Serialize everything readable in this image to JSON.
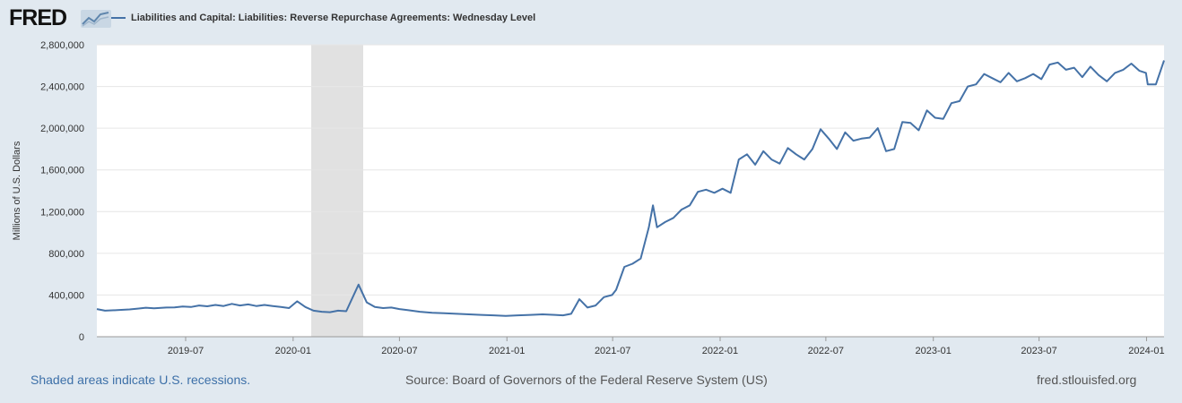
{
  "logo": {
    "text": "FRED",
    "icon": "line-chart-icon"
  },
  "legend": {
    "label": "Liabilities and Capital: Liabilities: Reverse Repurchase Agreements: Wednesday Level",
    "color": "#4572a7"
  },
  "footer": {
    "recession_note": "Shaded areas indicate U.S. recessions.",
    "source": "Source: Board of Governors of the Federal Reserve System (US)",
    "site": "fred.stlouisfed.org"
  },
  "chart_data": {
    "type": "line",
    "title": "Liabilities and Capital: Liabilities: Reverse Repurchase Agreements: Wednesday Level",
    "xlabel": "",
    "ylabel": "Millions of U.S. Dollars",
    "ylim": [
      0,
      2800000
    ],
    "xlim": [
      "2019-01-30",
      "2024-01-31"
    ],
    "y_ticks": [
      0,
      400000,
      800000,
      1200000,
      1600000,
      2000000,
      2400000,
      2800000
    ],
    "y_tick_labels": [
      "0",
      "400,000",
      "800,000",
      "1,200,000",
      "1,600,000",
      "2,000,000",
      "2,400,000",
      "2,800,000"
    ],
    "x_ticks": [
      "2019-07-01",
      "2020-01-01",
      "2020-07-01",
      "2021-01-01",
      "2021-07-01",
      "2022-01-01",
      "2022-07-01",
      "2023-01-01",
      "2023-07-01",
      "2024-01-01"
    ],
    "x_tick_labels": [
      "2019-07",
      "2020-01",
      "2020-07",
      "2021-01",
      "2021-07",
      "2022-01",
      "2022-07",
      "2023-01",
      "2023-07",
      "2024-01"
    ],
    "recessions": [
      {
        "start": "2020-02-01",
        "end": "2020-04-30"
      }
    ],
    "grid": true,
    "series": [
      {
        "name": "Liabilities and Capital: Liabilities: Reverse Repurchase Agreements: Wednesday Level",
        "color": "#4572a7",
        "points": [
          [
            "2019-01-30",
            265000
          ],
          [
            "2019-02-13",
            250000
          ],
          [
            "2019-03-06",
            255000
          ],
          [
            "2019-03-27",
            262000
          ],
          [
            "2019-04-10",
            270000
          ],
          [
            "2019-04-24",
            278000
          ],
          [
            "2019-05-08",
            272000
          ],
          [
            "2019-05-29",
            280000
          ],
          [
            "2019-06-12",
            282000
          ],
          [
            "2019-06-26",
            290000
          ],
          [
            "2019-07-10",
            285000
          ],
          [
            "2019-07-24",
            300000
          ],
          [
            "2019-08-07",
            292000
          ],
          [
            "2019-08-21",
            305000
          ],
          [
            "2019-09-04",
            295000
          ],
          [
            "2019-09-18",
            315000
          ],
          [
            "2019-10-02",
            300000
          ],
          [
            "2019-10-16",
            310000
          ],
          [
            "2019-10-30",
            295000
          ],
          [
            "2019-11-13",
            305000
          ],
          [
            "2019-11-27",
            295000
          ],
          [
            "2019-12-11",
            285000
          ],
          [
            "2019-12-25",
            275000
          ],
          [
            "2020-01-08",
            340000
          ],
          [
            "2020-01-22",
            285000
          ],
          [
            "2020-02-05",
            250000
          ],
          [
            "2020-02-19",
            240000
          ],
          [
            "2020-03-04",
            235000
          ],
          [
            "2020-03-18",
            250000
          ],
          [
            "2020-04-01",
            245000
          ],
          [
            "2020-04-22",
            500000
          ],
          [
            "2020-05-06",
            330000
          ],
          [
            "2020-05-20",
            285000
          ],
          [
            "2020-06-03",
            275000
          ],
          [
            "2020-06-17",
            280000
          ],
          [
            "2020-07-01",
            265000
          ],
          [
            "2020-07-15",
            255000
          ],
          [
            "2020-08-05",
            240000
          ],
          [
            "2020-08-26",
            230000
          ],
          [
            "2020-09-16",
            225000
          ],
          [
            "2020-10-07",
            220000
          ],
          [
            "2020-10-28",
            215000
          ],
          [
            "2020-11-18",
            210000
          ],
          [
            "2020-12-09",
            205000
          ],
          [
            "2020-12-30",
            200000
          ],
          [
            "2021-01-20",
            205000
          ],
          [
            "2021-02-10",
            210000
          ],
          [
            "2021-03-03",
            215000
          ],
          [
            "2021-03-24",
            210000
          ],
          [
            "2021-04-07",
            205000
          ],
          [
            "2021-04-21",
            220000
          ],
          [
            "2021-05-05",
            360000
          ],
          [
            "2021-05-19",
            280000
          ],
          [
            "2021-06-02",
            300000
          ],
          [
            "2021-06-16",
            380000
          ],
          [
            "2021-06-30",
            400000
          ],
          [
            "2021-07-07",
            450000
          ],
          [
            "2021-07-21",
            670000
          ],
          [
            "2021-08-04",
            700000
          ],
          [
            "2021-08-18",
            750000
          ],
          [
            "2021-09-01",
            1050000
          ],
          [
            "2021-09-08",
            1260000
          ],
          [
            "2021-09-15",
            1050000
          ],
          [
            "2021-09-29",
            1100000
          ],
          [
            "2021-10-13",
            1140000
          ],
          [
            "2021-10-27",
            1220000
          ],
          [
            "2021-11-10",
            1260000
          ],
          [
            "2021-11-24",
            1390000
          ],
          [
            "2021-12-08",
            1410000
          ],
          [
            "2021-12-22",
            1380000
          ],
          [
            "2022-01-05",
            1420000
          ],
          [
            "2022-01-19",
            1380000
          ],
          [
            "2022-02-02",
            1700000
          ],
          [
            "2022-02-16",
            1750000
          ],
          [
            "2022-03-02",
            1650000
          ],
          [
            "2022-03-16",
            1780000
          ],
          [
            "2022-03-30",
            1700000
          ],
          [
            "2022-04-13",
            1660000
          ],
          [
            "2022-04-27",
            1810000
          ],
          [
            "2022-05-11",
            1750000
          ],
          [
            "2022-05-25",
            1700000
          ],
          [
            "2022-06-08",
            1800000
          ],
          [
            "2022-06-22",
            1990000
          ],
          [
            "2022-07-06",
            1900000
          ],
          [
            "2022-07-20",
            1800000
          ],
          [
            "2022-08-03",
            1960000
          ],
          [
            "2022-08-17",
            1880000
          ],
          [
            "2022-08-31",
            1900000
          ],
          [
            "2022-09-14",
            1910000
          ],
          [
            "2022-09-28",
            2000000
          ],
          [
            "2022-10-12",
            1780000
          ],
          [
            "2022-10-26",
            1800000
          ],
          [
            "2022-11-09",
            2060000
          ],
          [
            "2022-11-23",
            2050000
          ],
          [
            "2022-12-07",
            1980000
          ],
          [
            "2022-12-21",
            2170000
          ],
          [
            "2023-01-04",
            2100000
          ],
          [
            "2023-01-18",
            2090000
          ],
          [
            "2023-02-01",
            2240000
          ],
          [
            "2023-02-15",
            2260000
          ],
          [
            "2023-03-01",
            2400000
          ],
          [
            "2023-03-15",
            2420000
          ],
          [
            "2023-03-29",
            2520000
          ],
          [
            "2023-04-12",
            2480000
          ],
          [
            "2023-04-26",
            2440000
          ],
          [
            "2023-05-10",
            2530000
          ],
          [
            "2023-05-24",
            2450000
          ],
          [
            "2023-06-07",
            2480000
          ],
          [
            "2023-06-21",
            2520000
          ],
          [
            "2023-07-05",
            2470000
          ],
          [
            "2023-07-19",
            2610000
          ],
          [
            "2023-08-02",
            2630000
          ],
          [
            "2023-08-16",
            2560000
          ],
          [
            "2023-08-30",
            2580000
          ],
          [
            "2023-09-13",
            2490000
          ],
          [
            "2023-09-27",
            2590000
          ],
          [
            "2023-10-11",
            2510000
          ],
          [
            "2023-10-25",
            2450000
          ],
          [
            "2023-11-08",
            2530000
          ],
          [
            "2023-11-22",
            2560000
          ],
          [
            "2023-12-06",
            2620000
          ],
          [
            "2023-12-20",
            2550000
          ],
          [
            "2023-12-31",
            2530000
          ],
          [
            "2024-01-03",
            2420000
          ],
          [
            "2024-01-17",
            2420000
          ],
          [
            "2024-01-31",
            2650000
          ]
        ]
      }
    ]
  }
}
